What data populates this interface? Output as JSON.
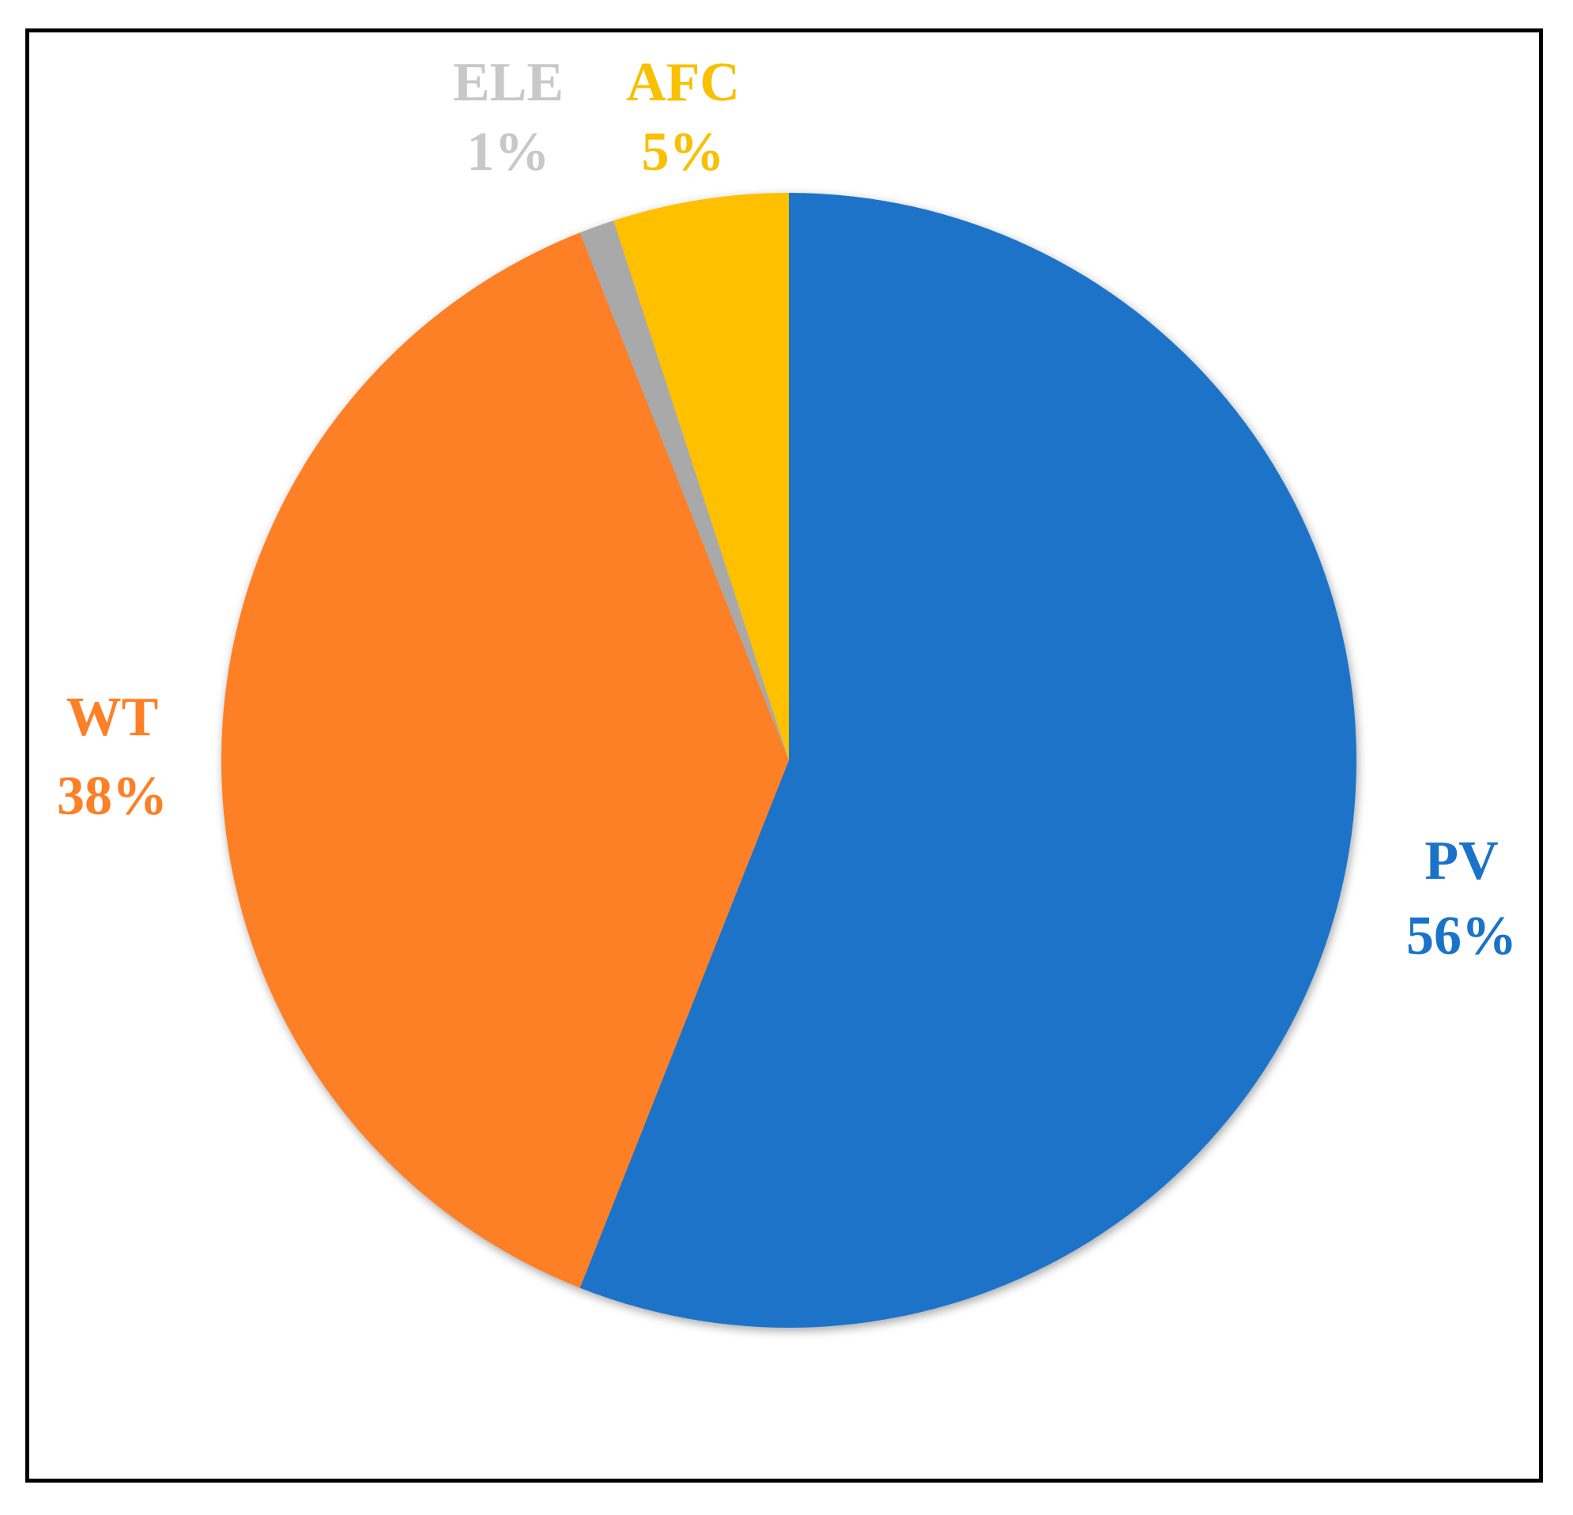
{
  "chart_data": {
    "type": "pie",
    "title": "",
    "start_angle_deg": 0,
    "direction": "clockwise",
    "slices": [
      {
        "label": "PV",
        "percent_label": "56%",
        "value": 56,
        "color": "#1A73C8"
      },
      {
        "label": "WT",
        "percent_label": "38%",
        "value": 38,
        "color": "#FD7F26"
      },
      {
        "label": "ELE",
        "percent_label": "1%",
        "value": 1,
        "color": "#A9A9A9"
      },
      {
        "label": "AFC",
        "percent_label": "5%",
        "value": 5,
        "color": "#FFC000"
      }
    ],
    "label_colors": {
      "PV": "#1A73C8",
      "WT": "#FD7F26",
      "ELE": "#C8C8C8",
      "AFC": "#F8C000"
    },
    "legend": "none",
    "labels_outside": true
  }
}
